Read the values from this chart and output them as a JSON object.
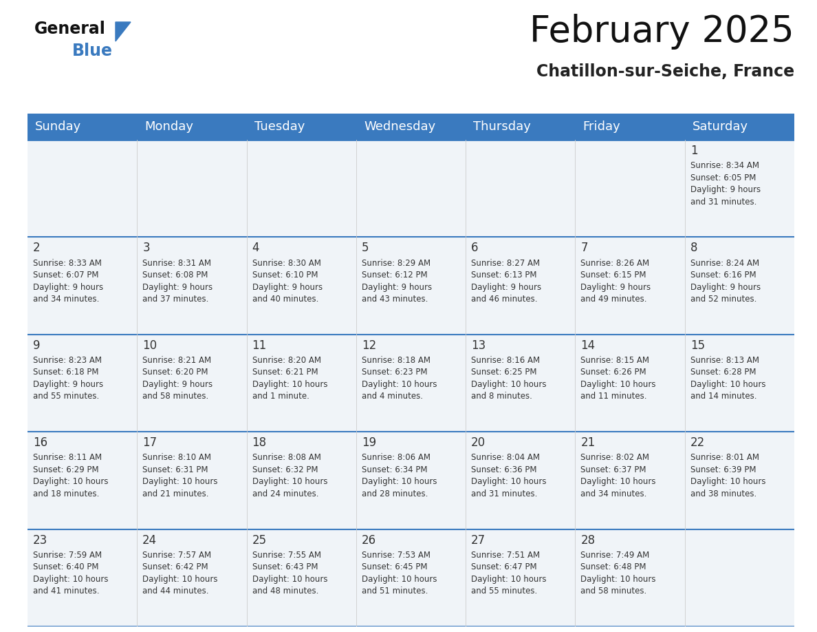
{
  "title": "February 2025",
  "subtitle": "Chatillon-sur-Seiche, France",
  "header_color": "#3a7abf",
  "header_text_color": "#ffffff",
  "cell_bg": "#f0f4f8",
  "day_names": [
    "Sunday",
    "Monday",
    "Tuesday",
    "Wednesday",
    "Thursday",
    "Friday",
    "Saturday"
  ],
  "title_fontsize": 38,
  "subtitle_fontsize": 17,
  "header_fontsize": 13,
  "day_num_fontsize": 12,
  "info_fontsize": 8.5,
  "divider_color": "#3a7abf",
  "vline_color": "#cccccc",
  "text_color": "#333333",
  "calendar": [
    [
      {
        "day": null,
        "info": null
      },
      {
        "day": null,
        "info": null
      },
      {
        "day": null,
        "info": null
      },
      {
        "day": null,
        "info": null
      },
      {
        "day": null,
        "info": null
      },
      {
        "day": null,
        "info": null
      },
      {
        "day": 1,
        "info": "Sunrise: 8:34 AM\nSunset: 6:05 PM\nDaylight: 9 hours\nand 31 minutes."
      }
    ],
    [
      {
        "day": 2,
        "info": "Sunrise: 8:33 AM\nSunset: 6:07 PM\nDaylight: 9 hours\nand 34 minutes."
      },
      {
        "day": 3,
        "info": "Sunrise: 8:31 AM\nSunset: 6:08 PM\nDaylight: 9 hours\nand 37 minutes."
      },
      {
        "day": 4,
        "info": "Sunrise: 8:30 AM\nSunset: 6:10 PM\nDaylight: 9 hours\nand 40 minutes."
      },
      {
        "day": 5,
        "info": "Sunrise: 8:29 AM\nSunset: 6:12 PM\nDaylight: 9 hours\nand 43 minutes."
      },
      {
        "day": 6,
        "info": "Sunrise: 8:27 AM\nSunset: 6:13 PM\nDaylight: 9 hours\nand 46 minutes."
      },
      {
        "day": 7,
        "info": "Sunrise: 8:26 AM\nSunset: 6:15 PM\nDaylight: 9 hours\nand 49 minutes."
      },
      {
        "day": 8,
        "info": "Sunrise: 8:24 AM\nSunset: 6:16 PM\nDaylight: 9 hours\nand 52 minutes."
      }
    ],
    [
      {
        "day": 9,
        "info": "Sunrise: 8:23 AM\nSunset: 6:18 PM\nDaylight: 9 hours\nand 55 minutes."
      },
      {
        "day": 10,
        "info": "Sunrise: 8:21 AM\nSunset: 6:20 PM\nDaylight: 9 hours\nand 58 minutes."
      },
      {
        "day": 11,
        "info": "Sunrise: 8:20 AM\nSunset: 6:21 PM\nDaylight: 10 hours\nand 1 minute."
      },
      {
        "day": 12,
        "info": "Sunrise: 8:18 AM\nSunset: 6:23 PM\nDaylight: 10 hours\nand 4 minutes."
      },
      {
        "day": 13,
        "info": "Sunrise: 8:16 AM\nSunset: 6:25 PM\nDaylight: 10 hours\nand 8 minutes."
      },
      {
        "day": 14,
        "info": "Sunrise: 8:15 AM\nSunset: 6:26 PM\nDaylight: 10 hours\nand 11 minutes."
      },
      {
        "day": 15,
        "info": "Sunrise: 8:13 AM\nSunset: 6:28 PM\nDaylight: 10 hours\nand 14 minutes."
      }
    ],
    [
      {
        "day": 16,
        "info": "Sunrise: 8:11 AM\nSunset: 6:29 PM\nDaylight: 10 hours\nand 18 minutes."
      },
      {
        "day": 17,
        "info": "Sunrise: 8:10 AM\nSunset: 6:31 PM\nDaylight: 10 hours\nand 21 minutes."
      },
      {
        "day": 18,
        "info": "Sunrise: 8:08 AM\nSunset: 6:32 PM\nDaylight: 10 hours\nand 24 minutes."
      },
      {
        "day": 19,
        "info": "Sunrise: 8:06 AM\nSunset: 6:34 PM\nDaylight: 10 hours\nand 28 minutes."
      },
      {
        "day": 20,
        "info": "Sunrise: 8:04 AM\nSunset: 6:36 PM\nDaylight: 10 hours\nand 31 minutes."
      },
      {
        "day": 21,
        "info": "Sunrise: 8:02 AM\nSunset: 6:37 PM\nDaylight: 10 hours\nand 34 minutes."
      },
      {
        "day": 22,
        "info": "Sunrise: 8:01 AM\nSunset: 6:39 PM\nDaylight: 10 hours\nand 38 minutes."
      }
    ],
    [
      {
        "day": 23,
        "info": "Sunrise: 7:59 AM\nSunset: 6:40 PM\nDaylight: 10 hours\nand 41 minutes."
      },
      {
        "day": 24,
        "info": "Sunrise: 7:57 AM\nSunset: 6:42 PM\nDaylight: 10 hours\nand 44 minutes."
      },
      {
        "day": 25,
        "info": "Sunrise: 7:55 AM\nSunset: 6:43 PM\nDaylight: 10 hours\nand 48 minutes."
      },
      {
        "day": 26,
        "info": "Sunrise: 7:53 AM\nSunset: 6:45 PM\nDaylight: 10 hours\nand 51 minutes."
      },
      {
        "day": 27,
        "info": "Sunrise: 7:51 AM\nSunset: 6:47 PM\nDaylight: 10 hours\nand 55 minutes."
      },
      {
        "day": 28,
        "info": "Sunrise: 7:49 AM\nSunset: 6:48 PM\nDaylight: 10 hours\nand 58 minutes."
      },
      {
        "day": null,
        "info": null
      }
    ]
  ]
}
